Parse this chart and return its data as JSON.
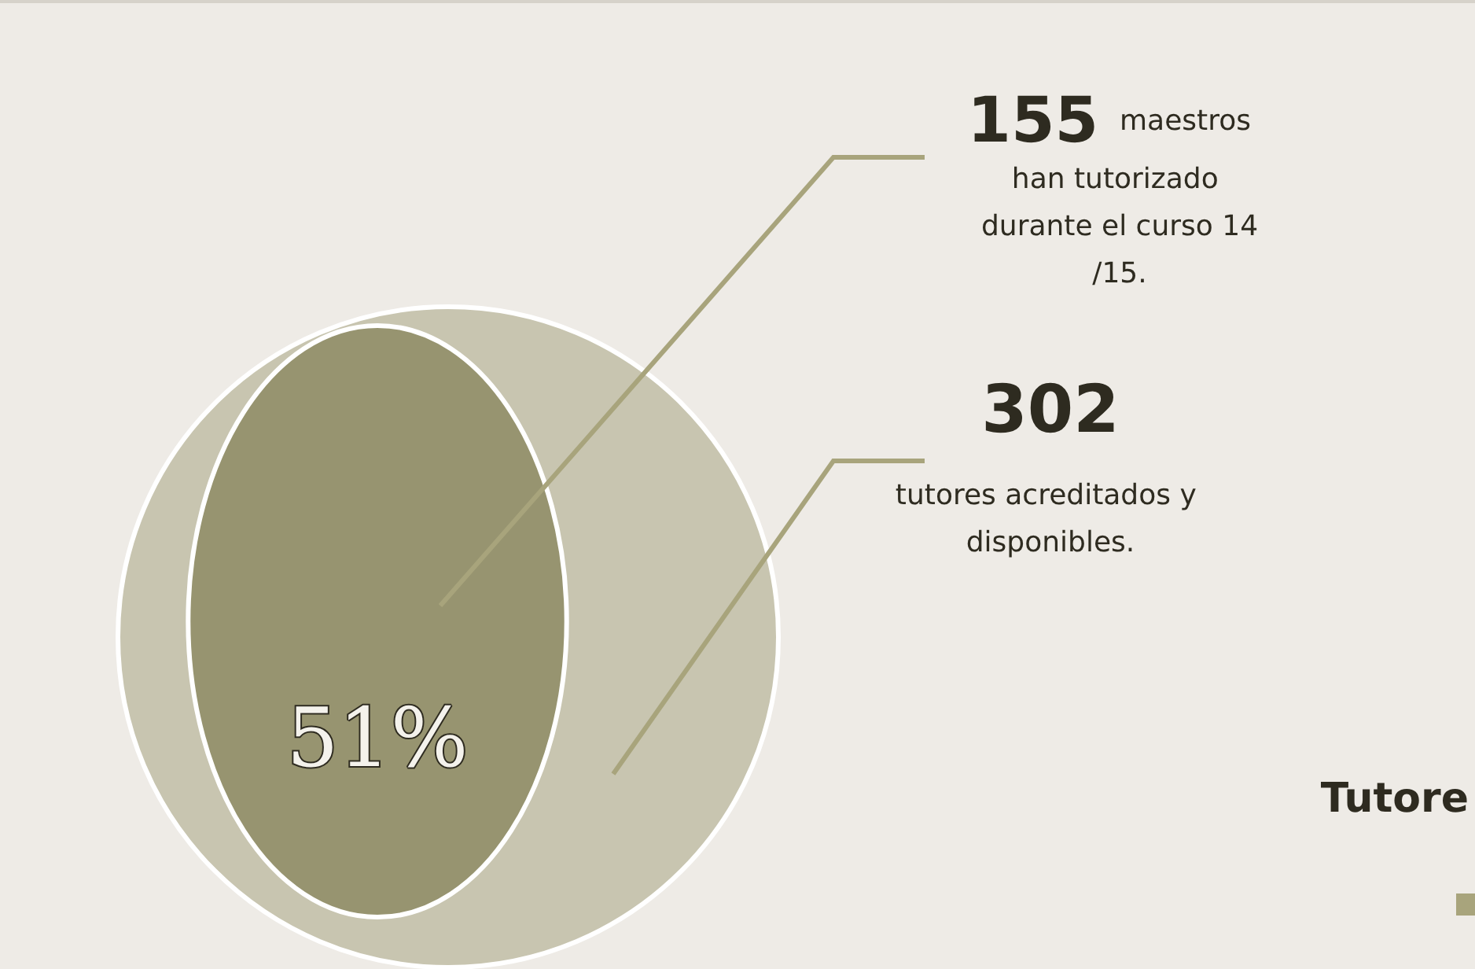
{
  "chart_data": {
    "type": "other",
    "categories": [
      "maestros han tutorizado durante el curso 14/15.",
      "tutores acreditados y disponibles."
    ],
    "values": [
      155,
      302
    ],
    "colors": [
      "#979470",
      "#c8c5b0"
    ],
    "data_labels": true,
    "annotations": [
      "51%",
      "Tutore"
    ]
  }
}
